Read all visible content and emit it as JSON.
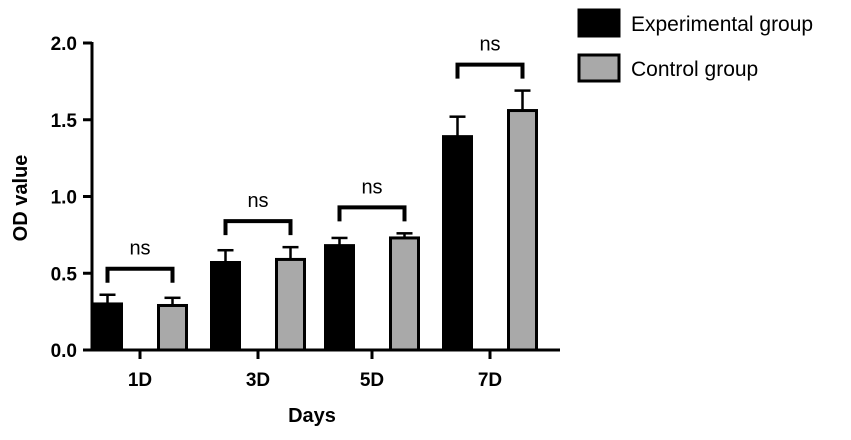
{
  "chart_data": {
    "type": "bar",
    "title": "",
    "xlabel": "Days",
    "ylabel": "OD value",
    "categories": [
      "1D",
      "3D",
      "5D",
      "7D"
    ],
    "ylim": [
      0,
      2.0
    ],
    "yticks": [
      "0.0",
      "0.5",
      "1.0",
      "1.5",
      "2.0"
    ],
    "ytick_values": [
      0,
      0.5,
      1.0,
      1.5,
      2.0
    ],
    "grid": false,
    "legend_position": "top-right",
    "series": [
      {
        "name": "Experimental group",
        "color": "#000000",
        "values": [
          0.3,
          0.57,
          0.68,
          1.39
        ],
        "errors": [
          0.06,
          0.08,
          0.05,
          0.13
        ]
      },
      {
        "name": "Control group",
        "color": "#a9a9a9",
        "values": [
          0.29,
          0.59,
          0.73,
          1.56
        ],
        "errors": [
          0.05,
          0.08,
          0.03,
          0.13
        ]
      }
    ],
    "significance": [
      "ns",
      "ns",
      "ns",
      "ns"
    ]
  }
}
